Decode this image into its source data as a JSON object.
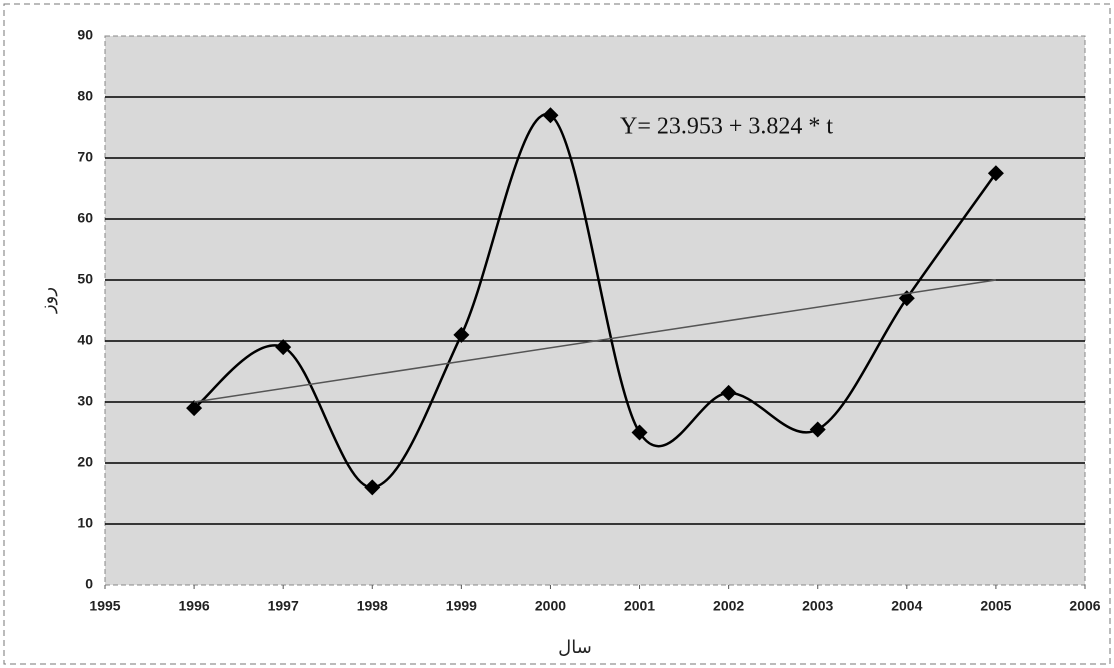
{
  "chart_data": {
    "type": "line",
    "annotation": "Y= 23.953 + 3.824 * t",
    "xlabel": "سال",
    "ylabel": "روز",
    "x": [
      1996,
      1997,
      1998,
      1999,
      2000,
      2001,
      2002,
      2003,
      2004,
      2005
    ],
    "series": [
      {
        "color": "#000000",
        "smooth": true,
        "marker": "diamond",
        "values": [
          29,
          39,
          16,
          41,
          77,
          25,
          31.5,
          25.5,
          47,
          67.5
        ]
      },
      {
        "color": "#555555",
        "smooth": false,
        "x": [
          1996,
          2005
        ],
        "values": [
          30,
          50
        ]
      }
    ],
    "xlim": [
      1995,
      2006
    ],
    "xticks": [
      1995,
      1996,
      1997,
      1998,
      1999,
      2000,
      2001,
      2002,
      2003,
      2004,
      2005,
      2006
    ],
    "ylim": [
      0,
      90
    ],
    "yticks": [
      0,
      10,
      20,
      30,
      40,
      50,
      60,
      70,
      80,
      90
    ],
    "grid": true,
    "background": "#d9d9d9"
  }
}
